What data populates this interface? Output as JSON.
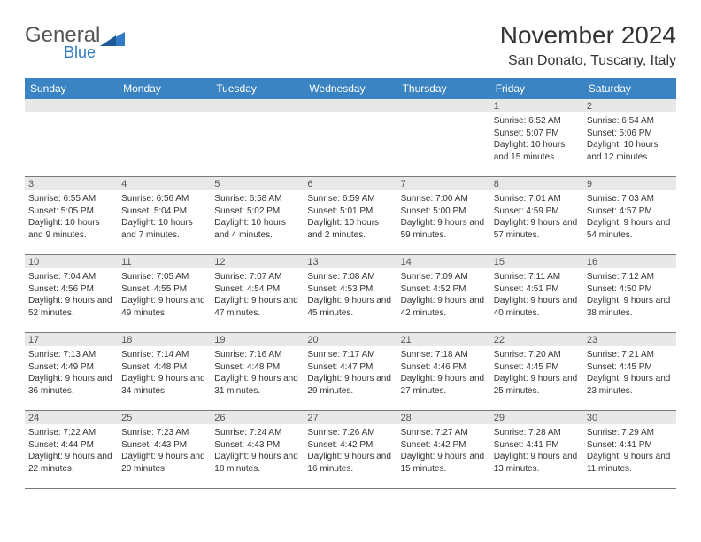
{
  "logo": {
    "general": "General",
    "blue": "Blue",
    "accent_color": "#2f7cc4"
  },
  "header": {
    "month_title": "November 2024",
    "location": "San Donato, Tuscany, Italy"
  },
  "colors": {
    "header_bg": "#3b84c4",
    "shade_bg": "#e8e8e8",
    "border": "#7a7a7a",
    "text": "#333333"
  },
  "weekdays": [
    "Sunday",
    "Monday",
    "Tuesday",
    "Wednesday",
    "Thursday",
    "Friday",
    "Saturday"
  ],
  "weeks": [
    [
      {
        "num": "",
        "sunrise": "",
        "sunset": "",
        "daylight": ""
      },
      {
        "num": "",
        "sunrise": "",
        "sunset": "",
        "daylight": ""
      },
      {
        "num": "",
        "sunrise": "",
        "sunset": "",
        "daylight": ""
      },
      {
        "num": "",
        "sunrise": "",
        "sunset": "",
        "daylight": ""
      },
      {
        "num": "",
        "sunrise": "",
        "sunset": "",
        "daylight": ""
      },
      {
        "num": "1",
        "sunrise": "Sunrise: 6:52 AM",
        "sunset": "Sunset: 5:07 PM",
        "daylight": "Daylight: 10 hours and 15 minutes."
      },
      {
        "num": "2",
        "sunrise": "Sunrise: 6:54 AM",
        "sunset": "Sunset: 5:06 PM",
        "daylight": "Daylight: 10 hours and 12 minutes."
      }
    ],
    [
      {
        "num": "3",
        "sunrise": "Sunrise: 6:55 AM",
        "sunset": "Sunset: 5:05 PM",
        "daylight": "Daylight: 10 hours and 9 minutes."
      },
      {
        "num": "4",
        "sunrise": "Sunrise: 6:56 AM",
        "sunset": "Sunset: 5:04 PM",
        "daylight": "Daylight: 10 hours and 7 minutes."
      },
      {
        "num": "5",
        "sunrise": "Sunrise: 6:58 AM",
        "sunset": "Sunset: 5:02 PM",
        "daylight": "Daylight: 10 hours and 4 minutes."
      },
      {
        "num": "6",
        "sunrise": "Sunrise: 6:59 AM",
        "sunset": "Sunset: 5:01 PM",
        "daylight": "Daylight: 10 hours and 2 minutes."
      },
      {
        "num": "7",
        "sunrise": "Sunrise: 7:00 AM",
        "sunset": "Sunset: 5:00 PM",
        "daylight": "Daylight: 9 hours and 59 minutes."
      },
      {
        "num": "8",
        "sunrise": "Sunrise: 7:01 AM",
        "sunset": "Sunset: 4:59 PM",
        "daylight": "Daylight: 9 hours and 57 minutes."
      },
      {
        "num": "9",
        "sunrise": "Sunrise: 7:03 AM",
        "sunset": "Sunset: 4:57 PM",
        "daylight": "Daylight: 9 hours and 54 minutes."
      }
    ],
    [
      {
        "num": "10",
        "sunrise": "Sunrise: 7:04 AM",
        "sunset": "Sunset: 4:56 PM",
        "daylight": "Daylight: 9 hours and 52 minutes."
      },
      {
        "num": "11",
        "sunrise": "Sunrise: 7:05 AM",
        "sunset": "Sunset: 4:55 PM",
        "daylight": "Daylight: 9 hours and 49 minutes."
      },
      {
        "num": "12",
        "sunrise": "Sunrise: 7:07 AM",
        "sunset": "Sunset: 4:54 PM",
        "daylight": "Daylight: 9 hours and 47 minutes."
      },
      {
        "num": "13",
        "sunrise": "Sunrise: 7:08 AM",
        "sunset": "Sunset: 4:53 PM",
        "daylight": "Daylight: 9 hours and 45 minutes."
      },
      {
        "num": "14",
        "sunrise": "Sunrise: 7:09 AM",
        "sunset": "Sunset: 4:52 PM",
        "daylight": "Daylight: 9 hours and 42 minutes."
      },
      {
        "num": "15",
        "sunrise": "Sunrise: 7:11 AM",
        "sunset": "Sunset: 4:51 PM",
        "daylight": "Daylight: 9 hours and 40 minutes."
      },
      {
        "num": "16",
        "sunrise": "Sunrise: 7:12 AM",
        "sunset": "Sunset: 4:50 PM",
        "daylight": "Daylight: 9 hours and 38 minutes."
      }
    ],
    [
      {
        "num": "17",
        "sunrise": "Sunrise: 7:13 AM",
        "sunset": "Sunset: 4:49 PM",
        "daylight": "Daylight: 9 hours and 36 minutes."
      },
      {
        "num": "18",
        "sunrise": "Sunrise: 7:14 AM",
        "sunset": "Sunset: 4:48 PM",
        "daylight": "Daylight: 9 hours and 34 minutes."
      },
      {
        "num": "19",
        "sunrise": "Sunrise: 7:16 AM",
        "sunset": "Sunset: 4:48 PM",
        "daylight": "Daylight: 9 hours and 31 minutes."
      },
      {
        "num": "20",
        "sunrise": "Sunrise: 7:17 AM",
        "sunset": "Sunset: 4:47 PM",
        "daylight": "Daylight: 9 hours and 29 minutes."
      },
      {
        "num": "21",
        "sunrise": "Sunrise: 7:18 AM",
        "sunset": "Sunset: 4:46 PM",
        "daylight": "Daylight: 9 hours and 27 minutes."
      },
      {
        "num": "22",
        "sunrise": "Sunrise: 7:20 AM",
        "sunset": "Sunset: 4:45 PM",
        "daylight": "Daylight: 9 hours and 25 minutes."
      },
      {
        "num": "23",
        "sunrise": "Sunrise: 7:21 AM",
        "sunset": "Sunset: 4:45 PM",
        "daylight": "Daylight: 9 hours and 23 minutes."
      }
    ],
    [
      {
        "num": "24",
        "sunrise": "Sunrise: 7:22 AM",
        "sunset": "Sunset: 4:44 PM",
        "daylight": "Daylight: 9 hours and 22 minutes."
      },
      {
        "num": "25",
        "sunrise": "Sunrise: 7:23 AM",
        "sunset": "Sunset: 4:43 PM",
        "daylight": "Daylight: 9 hours and 20 minutes."
      },
      {
        "num": "26",
        "sunrise": "Sunrise: 7:24 AM",
        "sunset": "Sunset: 4:43 PM",
        "daylight": "Daylight: 9 hours and 18 minutes."
      },
      {
        "num": "27",
        "sunrise": "Sunrise: 7:26 AM",
        "sunset": "Sunset: 4:42 PM",
        "daylight": "Daylight: 9 hours and 16 minutes."
      },
      {
        "num": "28",
        "sunrise": "Sunrise: 7:27 AM",
        "sunset": "Sunset: 4:42 PM",
        "daylight": "Daylight: 9 hours and 15 minutes."
      },
      {
        "num": "29",
        "sunrise": "Sunrise: 7:28 AM",
        "sunset": "Sunset: 4:41 PM",
        "daylight": "Daylight: 9 hours and 13 minutes."
      },
      {
        "num": "30",
        "sunrise": "Sunrise: 7:29 AM",
        "sunset": "Sunset: 4:41 PM",
        "daylight": "Daylight: 9 hours and 11 minutes."
      }
    ]
  ]
}
